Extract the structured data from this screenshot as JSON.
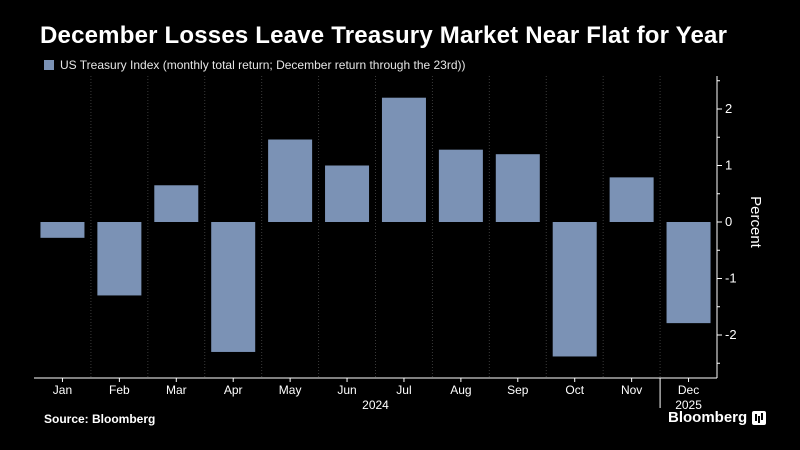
{
  "title": "December Losses Leave Treasury Market Near Flat for Year",
  "legend_label": "US Treasury Index (monthly total return; December return through the 23rd))",
  "source": "Source: Bloomberg",
  "brand": "Bloomberg",
  "colors": {
    "bar": "#7b92b5",
    "background": "#000000",
    "grid": "#3a3a3a",
    "axis": "#ffffff"
  },
  "chart_data": {
    "type": "bar",
    "categories": [
      "Jan",
      "Feb",
      "Mar",
      "Apr",
      "May",
      "Jun",
      "Jul",
      "Aug",
      "Sep",
      "Oct",
      "Nov",
      "Dec"
    ],
    "series": [
      {
        "name": "US Treasury Index (monthly total return; December return through the 23rd))",
        "values": [
          -0.28,
          -1.3,
          0.65,
          -2.3,
          1.46,
          1.0,
          2.2,
          1.28,
          1.2,
          -2.38,
          0.79,
          -1.79
        ]
      }
    ],
    "year_labels": [
      "2024",
      "2025"
    ],
    "ylabel": "Percent",
    "ylim": [
      -2.8,
      2.65
    ],
    "yticks": [
      -2,
      -1,
      0,
      1,
      2
    ],
    "axis_side": "right",
    "grid": "vertical dotted between months"
  }
}
